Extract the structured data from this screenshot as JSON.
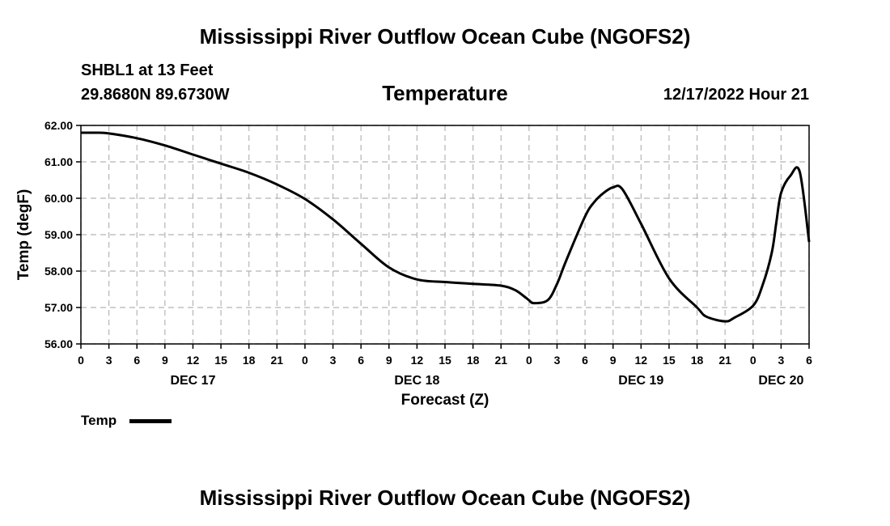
{
  "header": {
    "title": "Mississippi River Outflow Ocean Cube (NGOFS2)",
    "station": "SHBL1 at 13 Feet",
    "coords": "29.8680N  89.6730W",
    "variable": "Temperature",
    "datetime": "12/17/2022 Hour 21"
  },
  "footer": {
    "title": "Mississippi River Outflow Ocean Cube (NGOFS2)"
  },
  "legend": {
    "label": "Temp"
  },
  "chart_data": {
    "type": "line",
    "title": "Temperature",
    "xlabel": "Forecast (Z)",
    "ylabel": "Temp (degF)",
    "xlim": [
      0,
      78
    ],
    "ylim": [
      56.0,
      62.0
    ],
    "yticks": [
      "56.00",
      "57.00",
      "58.00",
      "59.00",
      "60.00",
      "61.00",
      "62.00"
    ],
    "xtick_labels": [
      "0",
      "3",
      "6",
      "9",
      "12",
      "15",
      "18",
      "21",
      "0",
      "3",
      "6",
      "9",
      "12",
      "15",
      "18",
      "21",
      "0",
      "3",
      "6",
      "9",
      "12",
      "15",
      "18",
      "21",
      "0",
      "3",
      "6"
    ],
    "day_labels": [
      {
        "label": "DEC 17",
        "hour": 12
      },
      {
        "label": "DEC 18",
        "hour": 36
      },
      {
        "label": "DEC 19",
        "hour": 60
      },
      {
        "label": "DEC 20",
        "hour": 75
      }
    ],
    "grid": true,
    "series": [
      {
        "name": "Temp",
        "x": [
          0,
          1,
          2,
          3,
          6,
          9,
          12,
          15,
          18,
          21,
          24,
          27,
          30,
          33,
          36,
          39,
          42,
          45,
          46.5,
          47.5,
          48,
          48.5,
          50,
          51,
          52,
          54,
          55,
          56,
          57,
          58,
          60,
          63,
          66,
          67,
          69,
          70,
          72,
          73,
          74,
          74.5,
          75,
          76,
          77,
          78
        ],
        "y": [
          61.8,
          61.8,
          61.8,
          61.78,
          61.65,
          61.45,
          61.2,
          60.95,
          60.7,
          60.38,
          59.98,
          59.42,
          58.75,
          58.1,
          57.77,
          57.7,
          57.65,
          57.6,
          57.48,
          57.3,
          57.2,
          57.12,
          57.2,
          57.65,
          58.3,
          59.5,
          59.9,
          60.15,
          60.3,
          60.25,
          59.3,
          57.8,
          57.0,
          56.75,
          56.62,
          56.72,
          57.05,
          57.6,
          58.5,
          59.35,
          60.15,
          60.62,
          60.72,
          58.8
        ]
      }
    ]
  }
}
